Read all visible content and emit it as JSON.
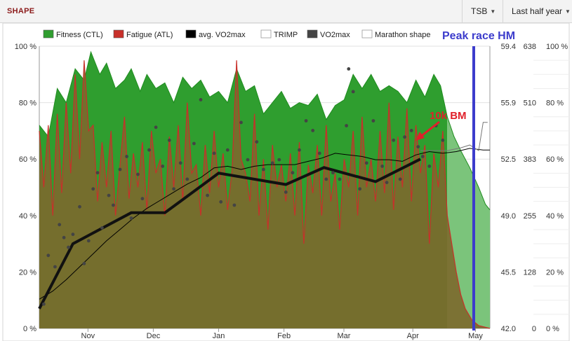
{
  "header": {
    "title": "SHAPE",
    "metric_select": "TSB",
    "period_select": "Last half year"
  },
  "colors": {
    "fitness": "#1f8c1f",
    "fitness_fill": "#2f9e2f",
    "fatigue": "#c8302a",
    "fatigue_fill": "#7c6a2e",
    "vo2max_avg": "#000000",
    "vo2max": "#444444",
    "marathon_shape": "#111111",
    "annotation_red": "#e0202a",
    "annotation_blue": "#3c3ccc"
  },
  "annotations": {
    "peak_race": "Peak race HM",
    "ten_k": "10k BM"
  },
  "chart_data": {
    "type": "area",
    "legend": [
      "Fitness (CTL)",
      "Fatigue (ATL)",
      "avg. VO2max",
      "TRIMP",
      "VO2max",
      "Marathon shape"
    ],
    "legend_position": "top",
    "x_ticks": [
      "Nov",
      "Dec",
      "Jan",
      "Feb",
      "Mar",
      "Apr",
      "May"
    ],
    "x_range": [
      0,
      201
    ],
    "y_axes": {
      "left_percent": [
        "0 %",
        "20 %",
        "40 %",
        "60 %",
        "80 %",
        "100 %"
      ],
      "vo2max": [
        "42.0",
        "45.5",
        "49.0",
        "52.5",
        "55.9",
        "59.4"
      ],
      "trimp": [
        "0",
        "128",
        "255",
        "383",
        "510",
        "638"
      ],
      "right_percent": [
        "0 %",
        "20 %",
        "40 %",
        "60 %",
        "80 %",
        "100 %"
      ]
    },
    "grid": true,
    "series": [
      {
        "name": "Fitness (CTL)",
        "unit": "%",
        "points": [
          [
            0,
            72
          ],
          [
            4,
            68
          ],
          [
            8,
            85
          ],
          [
            12,
            80
          ],
          [
            16,
            92
          ],
          [
            20,
            88
          ],
          [
            23,
            98
          ],
          [
            27,
            90
          ],
          [
            30,
            94
          ],
          [
            34,
            85
          ],
          [
            38,
            88
          ],
          [
            41,
            92
          ],
          [
            45,
            84
          ],
          [
            48,
            90
          ],
          [
            52,
            85
          ],
          [
            56,
            87
          ],
          [
            60,
            80
          ],
          [
            64,
            89
          ],
          [
            68,
            85
          ],
          [
            72,
            88
          ],
          [
            76,
            82
          ],
          [
            80,
            84
          ],
          [
            84,
            80
          ],
          [
            88,
            92
          ],
          [
            92,
            84
          ],
          [
            96,
            86
          ],
          [
            100,
            76
          ],
          [
            104,
            80
          ],
          [
            108,
            84
          ],
          [
            112,
            78
          ],
          [
            116,
            80
          ],
          [
            120,
            79
          ],
          [
            124,
            83
          ],
          [
            128,
            74
          ],
          [
            132,
            79
          ],
          [
            136,
            81
          ],
          [
            140,
            90
          ],
          [
            144,
            85
          ],
          [
            148,
            90
          ],
          [
            152,
            84
          ],
          [
            156,
            86
          ],
          [
            160,
            84
          ],
          [
            164,
            80
          ],
          [
            168,
            88
          ],
          [
            172,
            82
          ],
          [
            176,
            90
          ],
          [
            179,
            86
          ],
          [
            182,
            75
          ],
          [
            185,
            68
          ],
          [
            188,
            63
          ],
          [
            192,
            57
          ],
          [
            196,
            50
          ],
          [
            199,
            44
          ],
          [
            201,
            42
          ]
        ]
      },
      {
        "name": "Fatigue (ATL)",
        "unit": "%",
        "points": [
          [
            0,
            70
          ],
          [
            2,
            50
          ],
          [
            4,
            72
          ],
          [
            6,
            40
          ],
          [
            8,
            76
          ],
          [
            10,
            48
          ],
          [
            12,
            80
          ],
          [
            14,
            55
          ],
          [
            16,
            90
          ],
          [
            18,
            60
          ],
          [
            20,
            95
          ],
          [
            22,
            70
          ],
          [
            24,
            72
          ],
          [
            26,
            45
          ],
          [
            28,
            66
          ],
          [
            30,
            50
          ],
          [
            32,
            70
          ],
          [
            34,
            40
          ],
          [
            36,
            58
          ],
          [
            38,
            75
          ],
          [
            40,
            46
          ],
          [
            42,
            62
          ],
          [
            44,
            50
          ],
          [
            46,
            66
          ],
          [
            48,
            42
          ],
          [
            50,
            70
          ],
          [
            52,
            55
          ],
          [
            54,
            60
          ],
          [
            56,
            40
          ],
          [
            58,
            68
          ],
          [
            60,
            50
          ],
          [
            62,
            72
          ],
          [
            64,
            45
          ],
          [
            66,
            80
          ],
          [
            68,
            55
          ],
          [
            70,
            58
          ],
          [
            72,
            40
          ],
          [
            74,
            65
          ],
          [
            76,
            48
          ],
          [
            78,
            70
          ],
          [
            80,
            50
          ],
          [
            82,
            62
          ],
          [
            84,
            42
          ],
          [
            86,
            56
          ],
          [
            88,
            95
          ],
          [
            90,
            60
          ],
          [
            92,
            55
          ],
          [
            94,
            45
          ],
          [
            96,
            76
          ],
          [
            98,
            40
          ],
          [
            100,
            60
          ],
          [
            102,
            35
          ],
          [
            104,
            65
          ],
          [
            106,
            50
          ],
          [
            108,
            58
          ],
          [
            110,
            45
          ],
          [
            112,
            62
          ],
          [
            114,
            40
          ],
          [
            116,
            66
          ],
          [
            118,
            30
          ],
          [
            120,
            58
          ],
          [
            122,
            48
          ],
          [
            124,
            65
          ],
          [
            126,
            40
          ],
          [
            128,
            72
          ],
          [
            130,
            45
          ],
          [
            132,
            55
          ],
          [
            134,
            35
          ],
          [
            136,
            60
          ],
          [
            138,
            50
          ],
          [
            140,
            70
          ],
          [
            142,
            40
          ],
          [
            144,
            75
          ],
          [
            146,
            50
          ],
          [
            148,
            60
          ],
          [
            150,
            45
          ],
          [
            152,
            70
          ],
          [
            154,
            48
          ],
          [
            156,
            80
          ],
          [
            158,
            42
          ],
          [
            160,
            68
          ],
          [
            162,
            50
          ],
          [
            164,
            78
          ],
          [
            166,
            45
          ],
          [
            168,
            72
          ],
          [
            170,
            55
          ],
          [
            172,
            65
          ],
          [
            174,
            30
          ],
          [
            176,
            62
          ],
          [
            178,
            50
          ],
          [
            180,
            70
          ],
          [
            182,
            40
          ],
          [
            184,
            30
          ],
          [
            186,
            20
          ],
          [
            188,
            12
          ],
          [
            190,
            7
          ],
          [
            193,
            3
          ],
          [
            196,
            1
          ],
          [
            201,
            0
          ]
        ]
      },
      {
        "name": "avg. VO2max",
        "unit": "VO2max",
        "points": [
          [
            0,
            43.8
          ],
          [
            6,
            44.3
          ],
          [
            12,
            45.0
          ],
          [
            18,
            45.8
          ],
          [
            24,
            46.6
          ],
          [
            30,
            47.4
          ],
          [
            36,
            48.1
          ],
          [
            42,
            48.8
          ],
          [
            48,
            49.4
          ],
          [
            54,
            49.9
          ],
          [
            60,
            50.4
          ],
          [
            66,
            50.9
          ],
          [
            72,
            51.3
          ],
          [
            78,
            51.9
          ],
          [
            84,
            52.0
          ],
          [
            90,
            51.8
          ],
          [
            96,
            52.0
          ],
          [
            102,
            52.1
          ],
          [
            108,
            52.1
          ],
          [
            114,
            52.1
          ],
          [
            120,
            52.3
          ],
          [
            126,
            52.5
          ],
          [
            132,
            52.8
          ],
          [
            138,
            52.7
          ],
          [
            144,
            52.6
          ],
          [
            150,
            52.4
          ],
          [
            156,
            52.4
          ],
          [
            162,
            52.3
          ],
          [
            168,
            52.7
          ],
          [
            174,
            52.9
          ],
          [
            180,
            52.8
          ],
          [
            186,
            52.9
          ],
          [
            192,
            53.1
          ],
          [
            198,
            53.0
          ],
          [
            201,
            53.0
          ]
        ]
      },
      {
        "name": "Marathon shape",
        "unit": "%",
        "points": [
          [
            0,
            7
          ],
          [
            15,
            30
          ],
          [
            41,
            41
          ],
          [
            56,
            41
          ],
          [
            80,
            55
          ],
          [
            110,
            51
          ],
          [
            127,
            57
          ],
          [
            150,
            52
          ],
          [
            170,
            60
          ]
        ]
      },
      {
        "name": "Marathon shape projection",
        "unit": "%",
        "points": [
          [
            170,
            63
          ],
          [
            176,
            63
          ],
          [
            182,
            63
          ],
          [
            188,
            64
          ],
          [
            192,
            65
          ],
          [
            196,
            63
          ],
          [
            198,
            73
          ],
          [
            200,
            73
          ]
        ]
      },
      {
        "name": "VO2max",
        "unit": "VO2max",
        "points": [
          [
            2,
            43.5
          ],
          [
            4,
            46.5
          ],
          [
            7,
            45.8
          ],
          [
            9,
            48.4
          ],
          [
            11,
            47.6
          ],
          [
            13,
            47.0
          ],
          [
            15,
            47.8
          ],
          [
            18,
            49.5
          ],
          [
            20,
            46.0
          ],
          [
            22,
            47.4
          ],
          [
            24,
            50.6
          ],
          [
            26,
            51.6
          ],
          [
            28,
            48.2
          ],
          [
            31,
            50.2
          ],
          [
            33,
            49.6
          ],
          [
            36,
            51.8
          ],
          [
            39,
            52.6
          ],
          [
            41,
            48.8
          ],
          [
            44,
            51.5
          ],
          [
            46,
            50.0
          ],
          [
            49,
            53.0
          ],
          [
            52,
            54.4
          ],
          [
            55,
            52.0
          ],
          [
            58,
            53.6
          ],
          [
            60,
            50.6
          ],
          [
            63,
            52.2
          ],
          [
            66,
            51.2
          ],
          [
            69,
            53.4
          ],
          [
            72,
            56.1
          ],
          [
            75,
            50.2
          ],
          [
            78,
            52.8
          ],
          [
            81,
            49.8
          ],
          [
            84,
            53.0
          ],
          [
            87,
            49.6
          ],
          [
            90,
            54.7
          ],
          [
            93,
            52.4
          ],
          [
            97,
            53.5
          ],
          [
            100,
            51.8
          ],
          [
            104,
            52.2
          ],
          [
            107,
            52.4
          ],
          [
            110,
            50.4
          ],
          [
            113,
            51.6
          ],
          [
            116,
            53.0
          ],
          [
            119,
            54.8
          ],
          [
            122,
            54.2
          ],
          [
            125,
            52.8
          ],
          [
            128,
            51.2
          ],
          [
            131,
            51.6
          ],
          [
            134,
            51.2
          ],
          [
            137,
            54.5
          ],
          [
            140,
            56.6
          ],
          [
            143,
            50.6
          ],
          [
            146,
            52.2
          ],
          [
            149,
            54.8
          ],
          [
            153,
            52.0
          ],
          [
            155,
            51.0
          ],
          [
            158,
            53.6
          ],
          [
            161,
            51.2
          ],
          [
            163,
            53.8
          ],
          [
            166,
            54.2
          ],
          [
            169,
            53.2
          ],
          [
            171,
            52.6
          ],
          [
            174,
            52.0
          ],
          [
            177,
            54.5
          ],
          [
            180,
            53.6
          ],
          [
            138,
            58.0
          ]
        ]
      }
    ]
  }
}
